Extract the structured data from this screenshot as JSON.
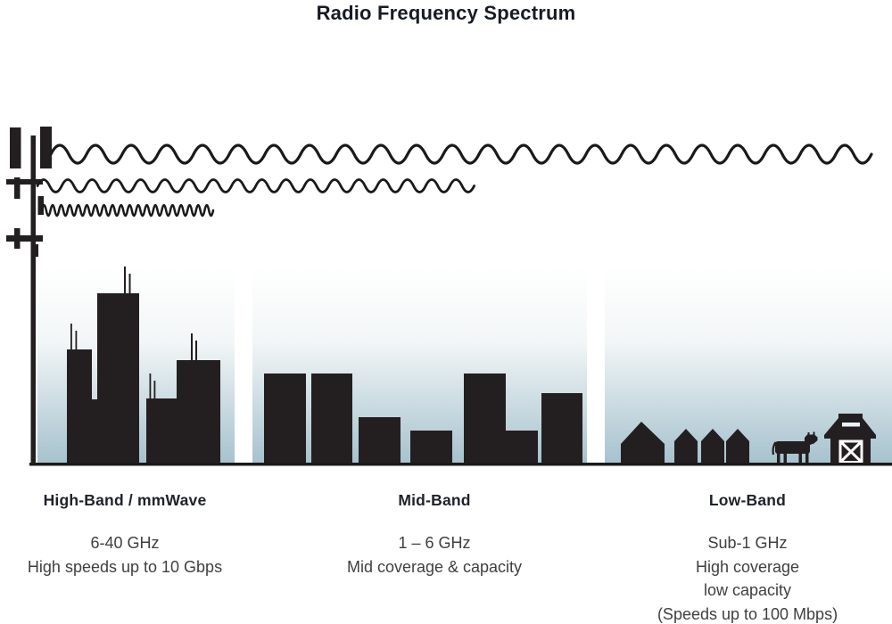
{
  "title": "Radio Frequency Spectrum",
  "colors": {
    "ink": "#231f20",
    "wave_stroke": "#1a1a1a",
    "sky_top": "#ffffff",
    "sky_bottom": "#a6c2ce",
    "heading_text": "#1e222c",
    "body_text": "#3f3f3f"
  },
  "illustration": {
    "tower_icon": "cell-tower-icon",
    "waves": [
      {
        "name": "low-band-wave",
        "description": "long wavelength, reaches across all zones"
      },
      {
        "name": "mid-band-wave",
        "description": "medium wavelength, reaches city and town"
      },
      {
        "name": "high-band-wave",
        "description": "short wavelength, reaches city only"
      }
    ],
    "scenes": [
      {
        "name": "city-skyline-icon",
        "band": "high"
      },
      {
        "name": "town-buildings-icon",
        "band": "mid"
      },
      {
        "name": "farm-icon",
        "band": "low",
        "elements": [
          "house-icon",
          "cow-icon",
          "barn-icon"
        ]
      }
    ]
  },
  "bands": [
    {
      "id": "high",
      "heading": "High-Band / mmWave",
      "lines": [
        "6-40 GHz",
        "High speeds up to 10 Gbps"
      ]
    },
    {
      "id": "mid",
      "heading": "Mid-Band",
      "lines": [
        "1 – 6 GHz",
        "Mid coverage & capacity"
      ]
    },
    {
      "id": "low",
      "heading": "Low-Band",
      "lines": [
        "Sub-1 GHz",
        "High coverage",
        "low capacity",
        "(Speeds up to 100 Mbps)"
      ]
    }
  ]
}
